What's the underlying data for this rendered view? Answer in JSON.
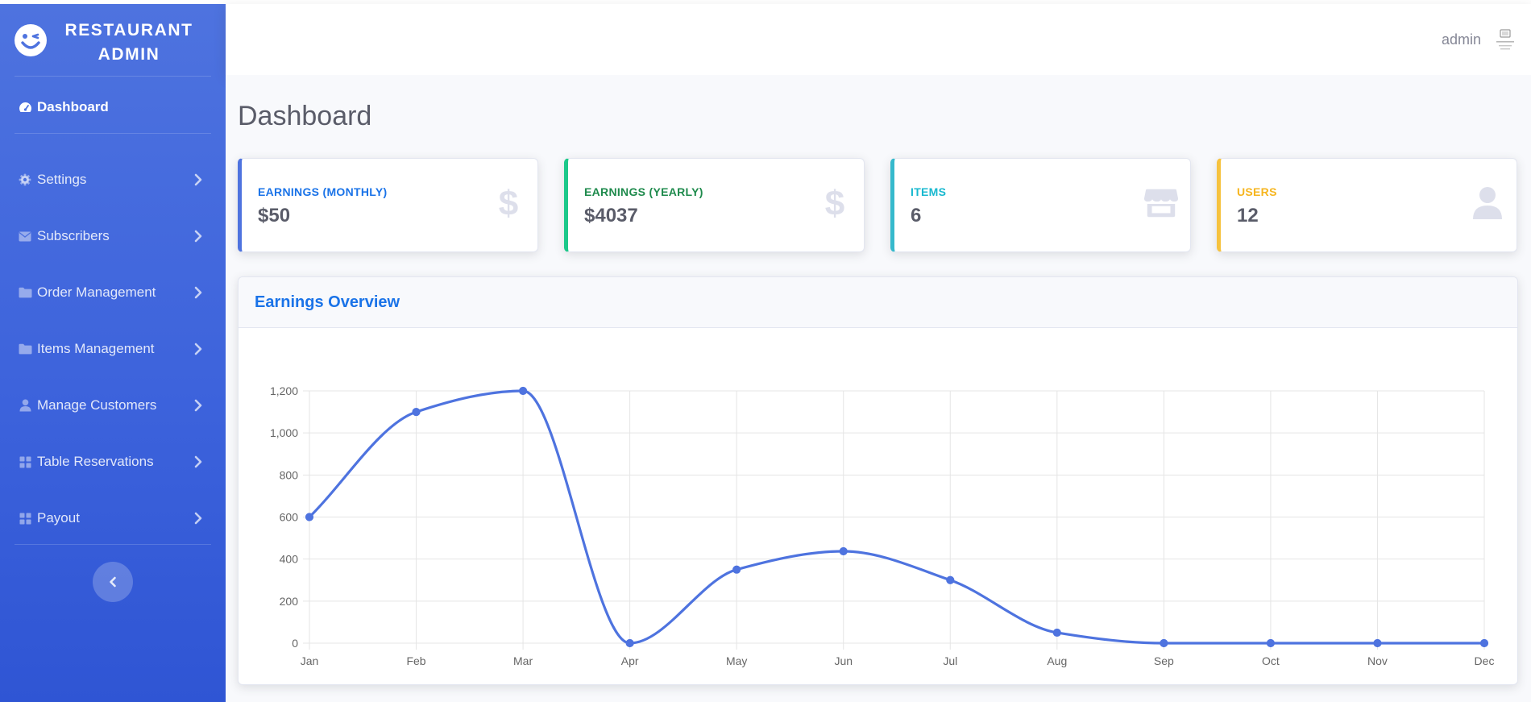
{
  "brand": {
    "name": "RESTAURANT ADMIN",
    "logo_icon": "smiley-wink-icon"
  },
  "sidebar": {
    "items": [
      {
        "label": "Dashboard",
        "icon": "tachometer-icon",
        "active": true
      },
      {
        "label": "Settings",
        "icon": "gear-icon"
      },
      {
        "label": "Subscribers",
        "icon": "envelope-icon"
      },
      {
        "label": "Order Management",
        "icon": "folder-icon"
      },
      {
        "label": "Items Management",
        "icon": "folder-icon"
      },
      {
        "label": "Manage Customers",
        "icon": "user-icon"
      },
      {
        "label": "Table Reservations",
        "icon": "th-large-icon"
      },
      {
        "label": "Payout",
        "icon": "th-large-icon"
      }
    ],
    "toggle_icon": "chevron-left-icon"
  },
  "topbar": {
    "user_name": "admin",
    "avatar_icon": "no-image-found-icon"
  },
  "page": {
    "title": "Dashboard"
  },
  "stats": [
    {
      "label": "EARNINGS (MONTHLY)",
      "value": "$50",
      "color": "#1a73e8",
      "border": "#4e73df",
      "icon": "dollar-icon"
    },
    {
      "label": "EARNINGS (YEARLY)",
      "value": "$4037",
      "color": "#1e8a4c",
      "border": "#1cc88a",
      "icon": "dollar-icon"
    },
    {
      "label": "ITEMS",
      "value": "6",
      "color": "#17b8cf",
      "border": "#36b9cc",
      "icon": "store-icon"
    },
    {
      "label": "USERS",
      "value": "12",
      "color": "#f6b51e",
      "border": "#f6c23e",
      "icon": "user-icon"
    }
  ],
  "chart_card": {
    "title": "Earnings Overview"
  },
  "chart_data": {
    "type": "line",
    "categories": [
      "Jan",
      "Feb",
      "Mar",
      "Apr",
      "May",
      "Jun",
      "Jul",
      "Aug",
      "Sep",
      "Oct",
      "Nov",
      "Dec"
    ],
    "values": [
      600,
      1100,
      1200,
      0,
      350,
      437,
      300,
      50,
      0,
      0,
      0,
      0
    ],
    "yticks": [
      0,
      200,
      400,
      600,
      800,
      1000,
      1200
    ],
    "ytick_labels": [
      "0",
      "200",
      "400",
      "600",
      "800",
      "1,000",
      "1,200"
    ],
    "ylim": [
      0,
      1200
    ],
    "grid": true,
    "line_color": "#4e73df",
    "title": "",
    "xlabel": "",
    "ylabel": ""
  },
  "colors": {
    "sidebar": "#4e73df",
    "accent": "#4e73df",
    "text_muted": "#858796"
  }
}
